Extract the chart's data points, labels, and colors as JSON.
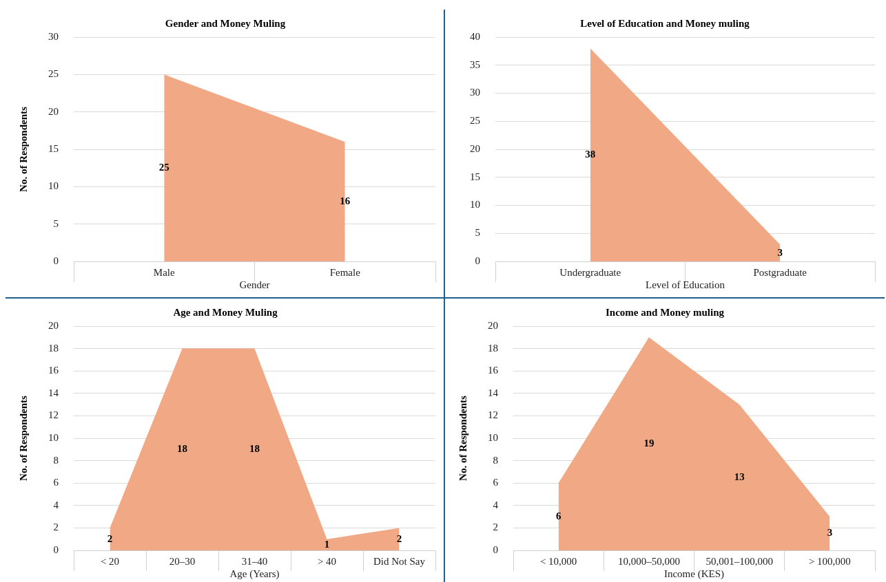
{
  "chart_data": [
    {
      "type": "area",
      "title": "Gender and Money Muling",
      "xlabel": "Gender",
      "ylabel": "No. of Respondents",
      "categories": [
        "Male",
        "Female"
      ],
      "series": [
        {
          "color": "#f0a984",
          "values": [
            25,
            16
          ]
        }
      ],
      "ylim": [
        0,
        30
      ],
      "yticks": [
        0,
        5,
        10,
        15,
        20,
        25,
        30
      ],
      "grid": "y",
      "value_labels": [
        "25",
        "16"
      ],
      "legend": false
    },
    {
      "type": "area",
      "title": "Level of Education and Money muling",
      "xlabel": "Level of Education",
      "categories": [
        "Undergraduate",
        "Postgraduate"
      ],
      "series": [
        {
          "color": "#f0a984",
          "values": [
            38,
            3
          ]
        }
      ],
      "ylim": [
        0,
        40
      ],
      "yticks": [
        0,
        5,
        10,
        15,
        20,
        25,
        30,
        35,
        40
      ],
      "grid": "y",
      "value_labels": [
        "38",
        "3"
      ],
      "legend": false
    },
    {
      "type": "area",
      "title": "Age and Money Muling",
      "xlabel": "Age (Years)",
      "ylabel": "No. of Respondents",
      "categories": [
        "< 20",
        "20–30",
        "31–40",
        "> 40",
        "Did Not Say"
      ],
      "series": [
        {
          "color": "#f0a984",
          "values": [
            2,
            18,
            18,
            1,
            2
          ]
        }
      ],
      "ylim": [
        0,
        20
      ],
      "yticks": [
        0,
        2,
        4,
        6,
        8,
        10,
        12,
        14,
        16,
        18,
        20
      ],
      "grid": "y",
      "value_labels": [
        "2",
        "18",
        "18",
        "1",
        "2"
      ],
      "legend": false
    },
    {
      "type": "area",
      "title": "Income and Money muling",
      "xlabel": "Income (KES)",
      "ylabel": "No. of Respondents",
      "categories": [
        "< 10,000",
        "10,000–50,000",
        "50,001–100,000",
        "> 100,000"
      ],
      "series": [
        {
          "color": "#f0a984",
          "values": [
            6,
            19,
            13,
            3
          ]
        }
      ],
      "ylim": [
        0,
        20
      ],
      "yticks": [
        0,
        2,
        4,
        6,
        8,
        10,
        12,
        14,
        16,
        18,
        20
      ],
      "grid": "y",
      "value_labels": [
        "6",
        "19",
        "13",
        "3"
      ],
      "legend": false
    }
  ]
}
